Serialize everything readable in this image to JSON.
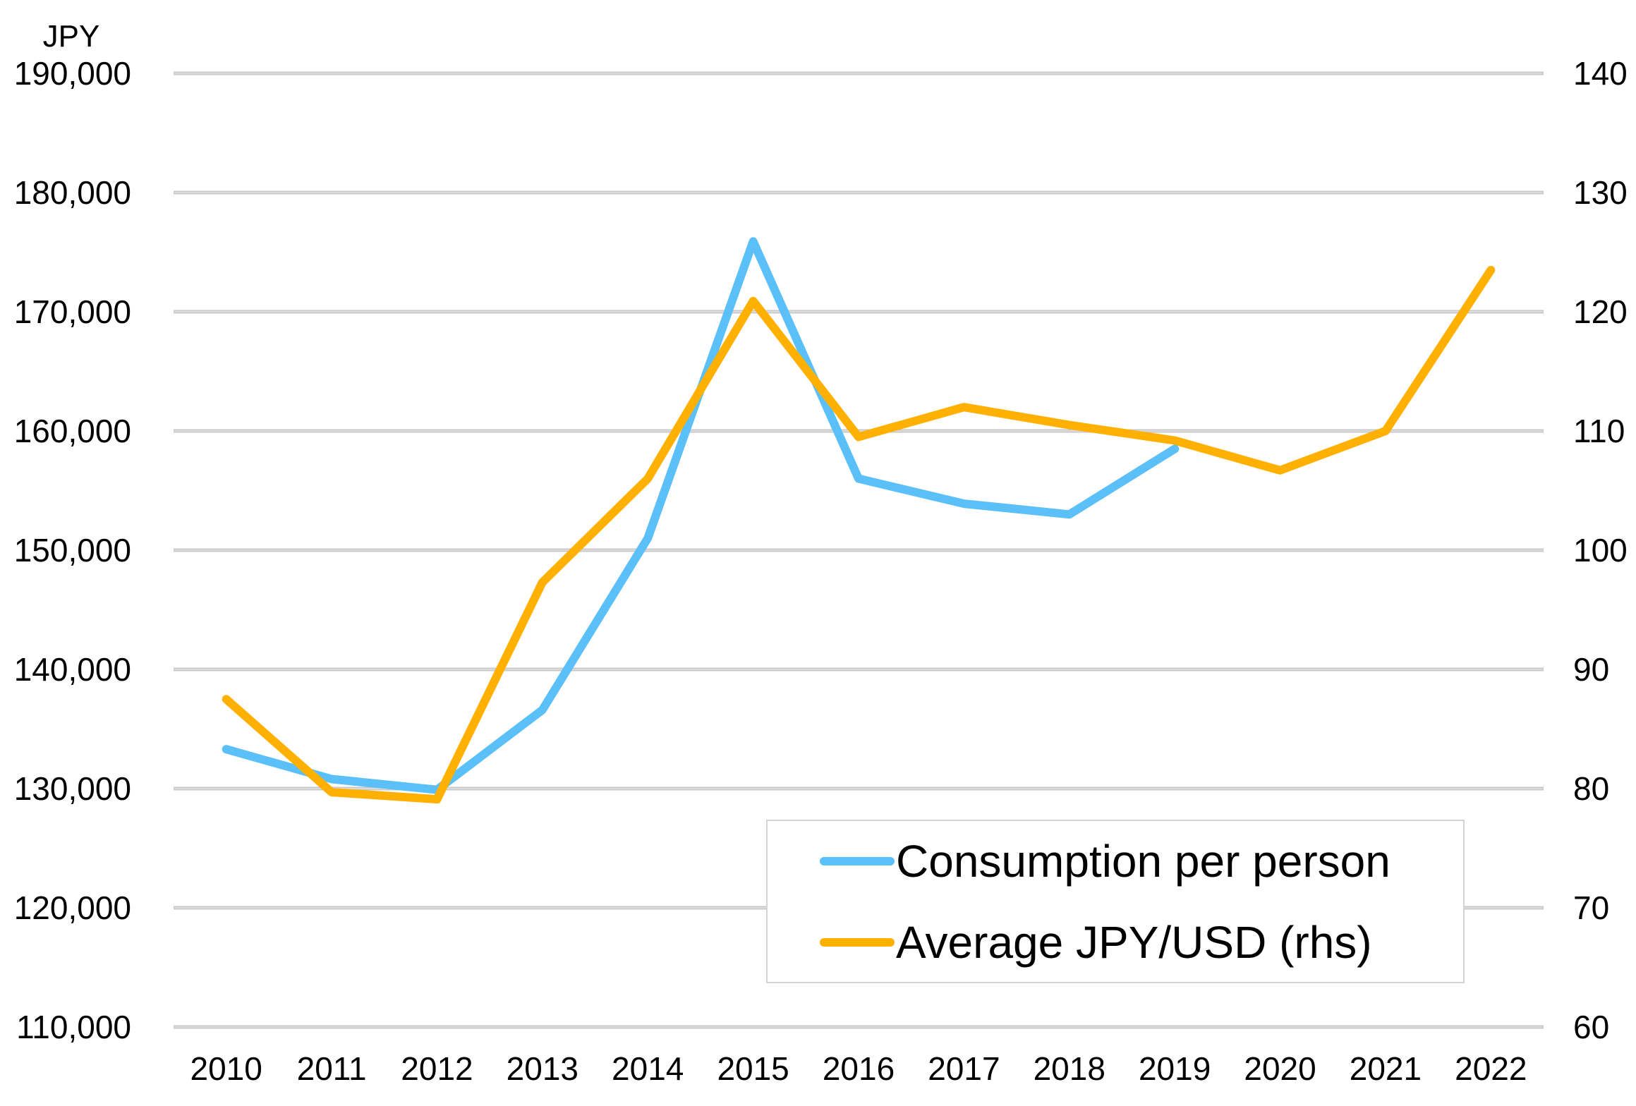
{
  "chart_data": {
    "type": "line",
    "title": "",
    "left_axis": {
      "unit_label": "JPY",
      "ylim": [
        110000,
        190000
      ],
      "ticks": [
        110000,
        120000,
        130000,
        140000,
        150000,
        160000,
        170000,
        180000,
        190000
      ],
      "tick_labels": [
        "110,000",
        "120,000",
        "130,000",
        "140,000",
        "150,000",
        "160,000",
        "170,000",
        "180,000",
        "190,000"
      ]
    },
    "right_axis": {
      "ylim": [
        60,
        140
      ],
      "ticks": [
        60,
        70,
        80,
        90,
        100,
        110,
        120,
        130,
        140
      ],
      "tick_labels": [
        "60",
        "70",
        "80",
        "90",
        "100",
        "110",
        "120",
        "130",
        "140"
      ]
    },
    "categories": [
      "2010",
      "2011",
      "2012",
      "2013",
      "2014",
      "2015",
      "2016",
      "2017",
      "2018",
      "2019",
      "2020",
      "2021",
      "2022"
    ],
    "grid": true,
    "legend_position": "bottom-right",
    "series": [
      {
        "name": "Consumption per person",
        "axis": "left",
        "color": "#5BC0F8",
        "values": [
          133300,
          130800,
          129900,
          136600,
          151000,
          175900,
          156000,
          153900,
          153000,
          158500,
          null,
          null,
          null
        ]
      },
      {
        "name": "Average JPY/USD (rhs)",
        "axis": "right",
        "color": "#FFB000",
        "values": [
          87.5,
          79.7,
          79.1,
          97.3,
          106.0,
          120.9,
          109.5,
          112.0,
          110.5,
          109.2,
          106.7,
          110.0,
          123.5
        ]
      }
    ]
  }
}
